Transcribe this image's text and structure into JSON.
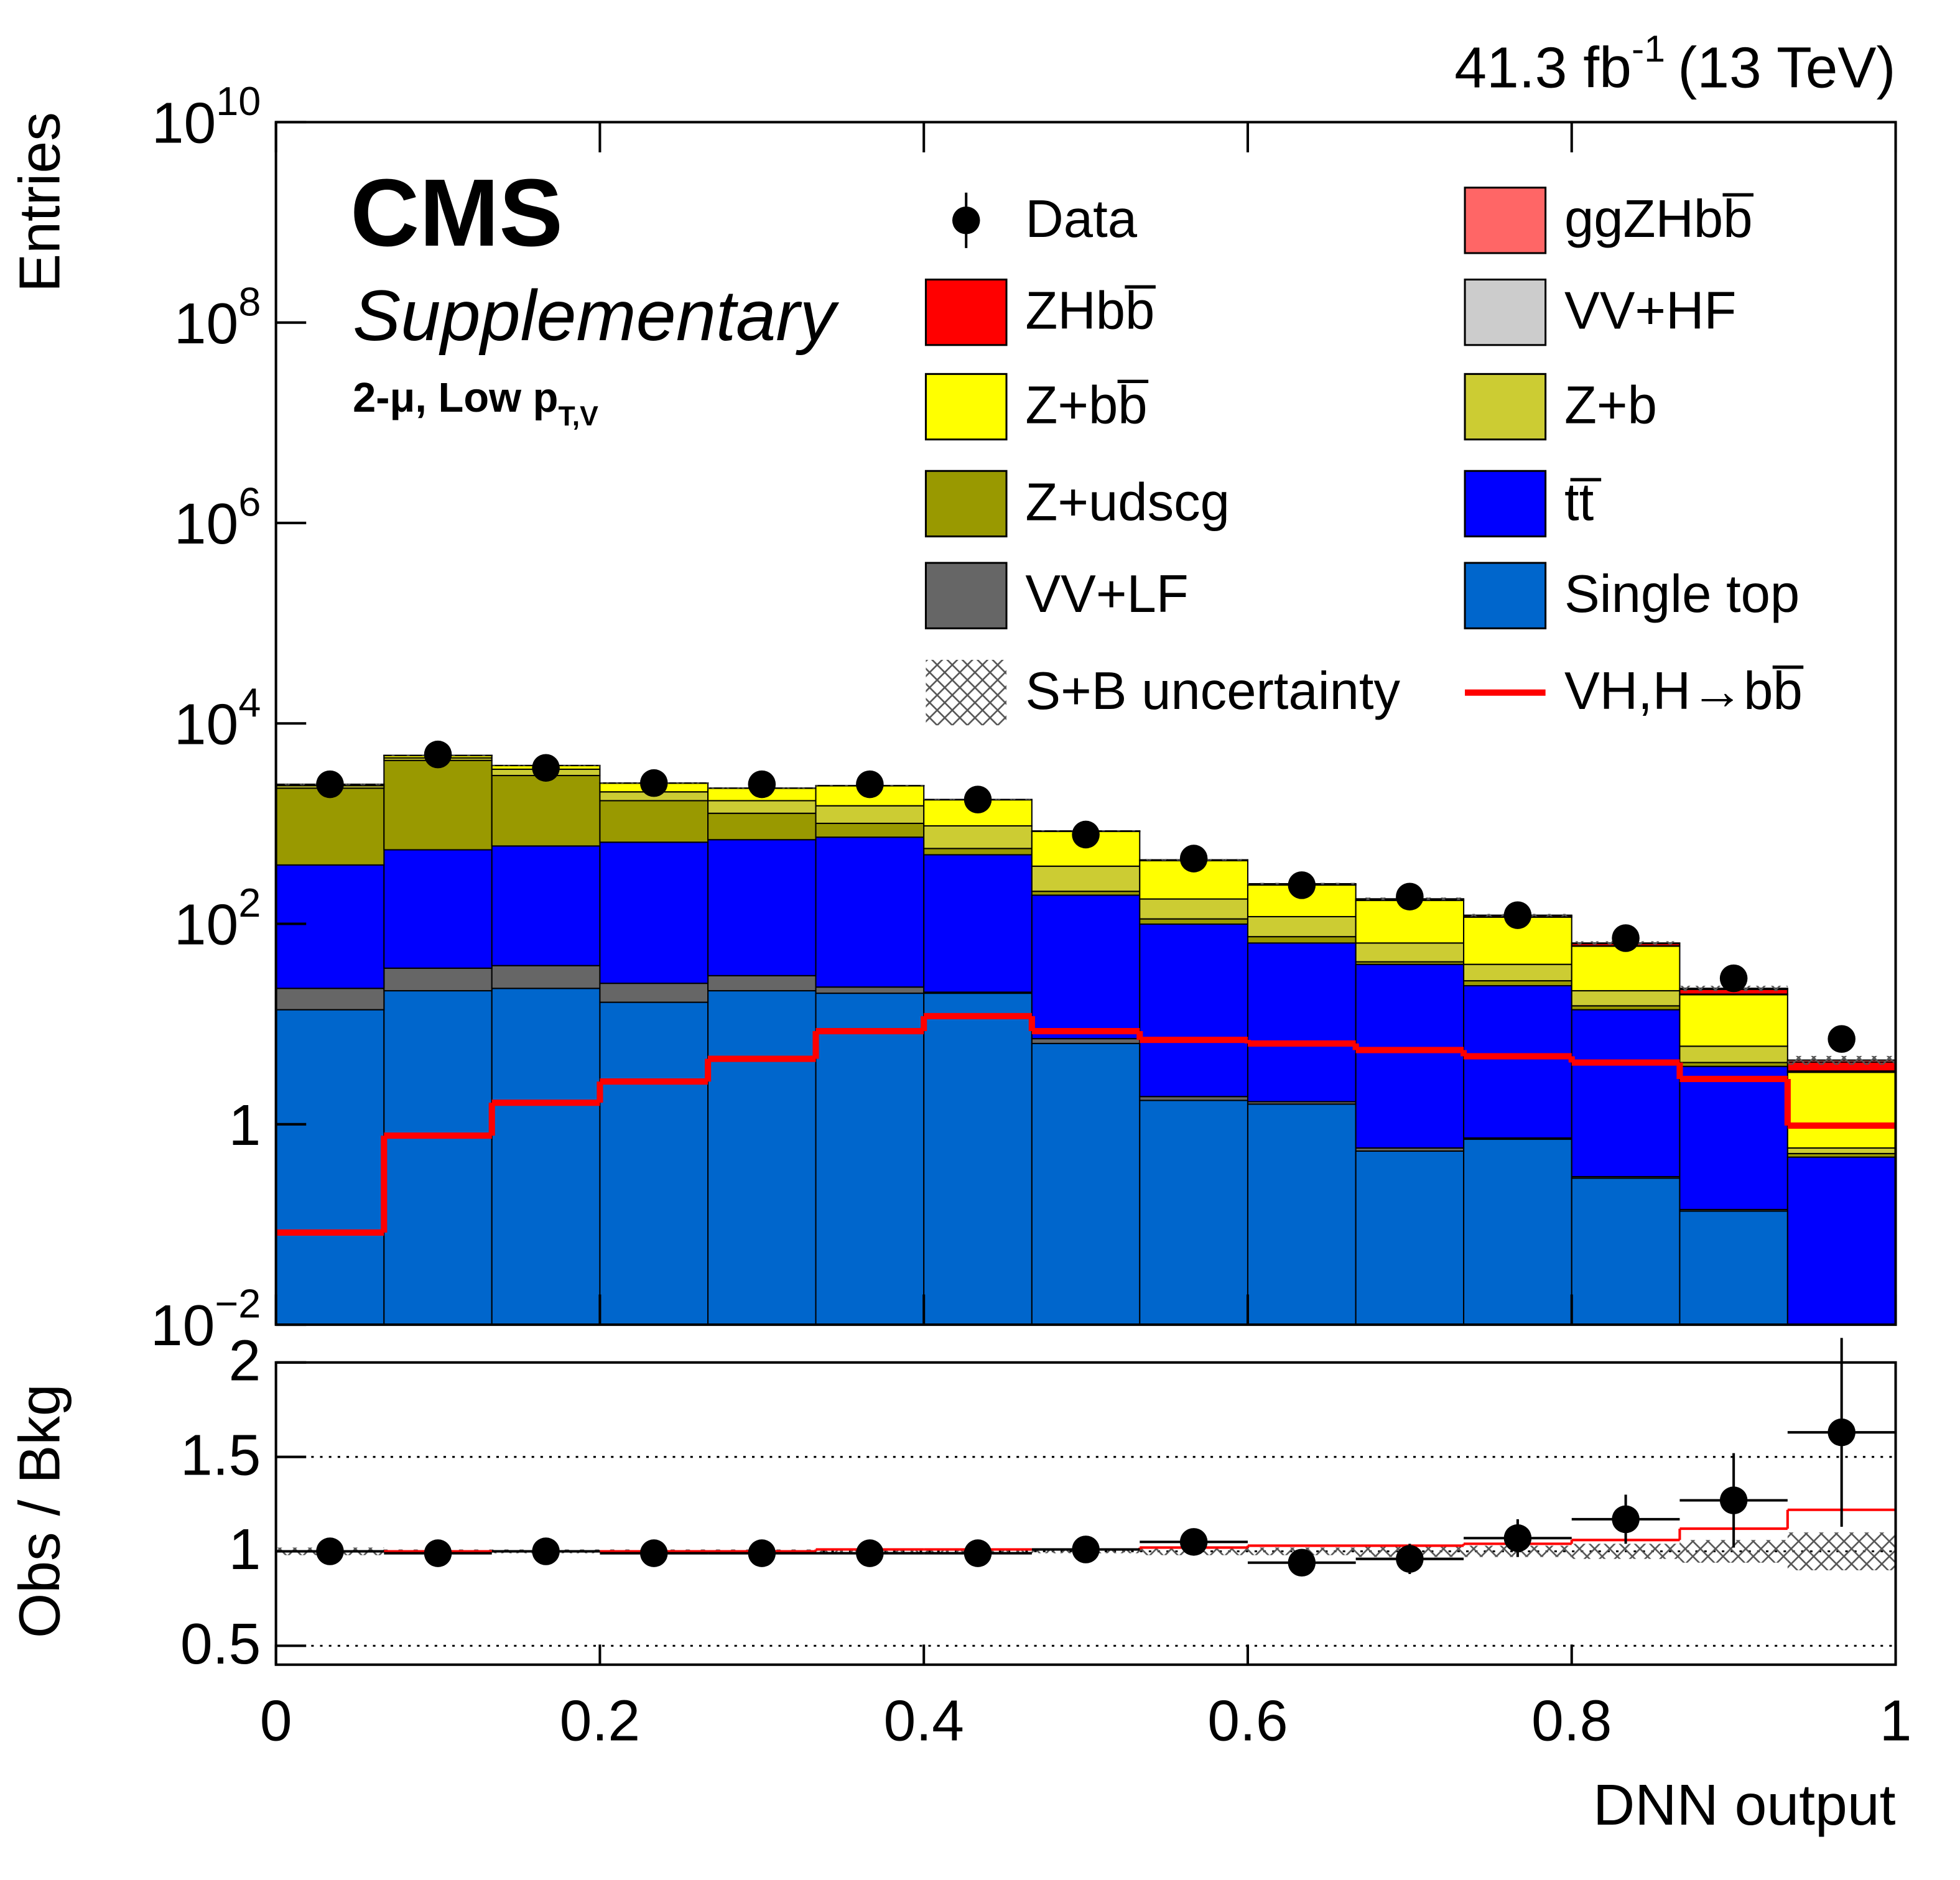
{
  "chart_data": [
    {
      "type": "histogram",
      "luminosity": {
        "text": "41.3 fb",
        "exponent": "-1",
        "energy": "(13 TeV)"
      },
      "experiment": "CMS",
      "status": "Supplementary",
      "region": {
        "text": "2-μ, Low p",
        "subscript": "T,V"
      },
      "y_label": "Entries",
      "bins": [
        0,
        0.0667,
        0.1333,
        0.2,
        0.2667,
        0.3333,
        0.4,
        0.4667,
        0.5333,
        0.6,
        0.6667,
        0.7333,
        0.8,
        0.8667,
        0.9333,
        1
      ],
      "ylim": [
        0.01,
        10000000000
      ],
      "log_y": true,
      "yticks": [
        {
          "value": 10000000000,
          "label": "10",
          "exponent": "10"
        },
        {
          "value": 100000000,
          "label": "10",
          "exponent": "8"
        },
        {
          "value": 1000000,
          "label": "10",
          "exponent": "6"
        },
        {
          "value": 10000,
          "label": "10",
          "exponent": "4"
        },
        {
          "value": 100,
          "label": "10",
          "exponent": "2"
        },
        1,
        {
          "value": 0.01,
          "label": "10",
          "exponent": "−2"
        }
      ],
      "series": [
        {
          "name": "Single top",
          "color": "#0066cc",
          "values": [
            13.9,
            21.5,
            22.7,
            16.5,
            21.5,
            20.3,
            20.3,
            6.4,
            1.73,
            1.59,
            0.54,
            0.71,
            0.29,
            0.136,
            0
          ]
        },
        {
          "name": "VV+LF",
          "color": "#666666",
          "values": [
            8.8,
            14.6,
            15.6,
            9.0,
            8.9,
            3.1,
            0.5,
            0.75,
            0.16,
            0.09,
            0.04,
            0.02,
            0.01,
            0.005,
            0
          ]
        },
        {
          "name": "tt̅",
          "color": "#0000ff",
          "values": [
            364,
            512,
            560,
            627,
            661,
            709,
            468,
            186,
            97.5,
            62.7,
            38.8,
            23.4,
            13.6,
            3.64,
            0.47
          ]
        },
        {
          "name": "Z+udscg",
          "color": "#999900",
          "values": [
            1873,
            3727,
            2422,
            1042,
            577,
            274,
            76,
            18,
            12.6,
            10.1,
            2.4,
            2.9,
            1.3,
            0.35,
            0.04
          ]
        },
        {
          "name": "Z+b",
          "color": "#cccc33",
          "values": [
            135,
            255,
            470,
            381,
            426,
            501,
            385,
            165,
            65,
            43.5,
            22.6,
            12.4,
            6.3,
            1.88,
            0.07
          ]
        },
        {
          "name": "Z+bb̅",
          "color": "#ffff00",
          "values": [
            67.9,
            261,
            305,
            458,
            558,
            876,
            778,
            459,
            250,
            126,
            107,
            77.2,
            38.3,
            13.6,
            2.72
          ]
        },
        {
          "name": "VV+HF",
          "color": "#cccccc",
          "values": [
            3,
            5,
            5,
            4,
            4,
            4,
            3,
            2,
            1.5,
            1,
            0.8,
            0.6,
            0.5,
            0.3,
            0.1
          ]
        },
        {
          "name": "ZHbb̅",
          "color": "#ff0000",
          "values": [
            0.066,
            0.62,
            1.31,
            2.14,
            3.6,
            6.8,
            9.6,
            6.8,
            5.56,
            5.12,
            4.4,
            3.82,
            3.3,
            2.26,
            0.78
          ]
        },
        {
          "name": "ggZHbb̅",
          "color": "#ff6666",
          "values": [
            0.017,
            0.15,
            0.33,
            0.53,
            0.9,
            1.7,
            2.4,
            1.7,
            1.39,
            1.28,
            1.1,
            0.95,
            0.83,
            0.57,
            0.19
          ]
        }
      ],
      "data": {
        "name": "Data",
        "color": "#000000",
        "values": [
          2470,
          4900,
          3600,
          2540,
          2470,
          2470,
          1740,
          778,
          448,
          243,
          187,
          122,
          72,
          28.6,
          7.1
        ]
      },
      "signal": {
        "name": "VH,H→bb̅",
        "color": "#ff0000",
        "values": [
          0.083,
          0.77,
          1.64,
          2.67,
          4.5,
          8.5,
          12.0,
          8.5,
          6.95,
          6.4,
          5.5,
          4.77,
          4.13,
          2.83,
          0.97
        ]
      },
      "legend": "top-right"
    },
    {
      "type": "ratio",
      "y_label": "Obs / Bkg",
      "x_label": "DNN output",
      "xlim": [
        0,
        1
      ],
      "xticks": [
        0,
        0.2,
        0.4,
        0.6,
        0.8,
        1
      ],
      "ylim": [
        0.4,
        2
      ],
      "yticks": [
        0.5,
        1,
        1.5,
        2
      ],
      "grid": true,
      "values": [
        1.0,
        0.99,
        1.0,
        0.99,
        0.99,
        0.99,
        0.99,
        1.01,
        1.05,
        0.94,
        0.96,
        1.07,
        1.17,
        1.27,
        1.63
      ],
      "errors": [
        0.02,
        0.02,
        0.02,
        0.02,
        0.02,
        0.02,
        0.03,
        0.04,
        0.05,
        0.07,
        0.08,
        0.1,
        0.13,
        0.25,
        0.5
      ],
      "signal_values": [
        1,
        1,
        1,
        1,
        1,
        1.01,
        1.01,
        1.01,
        1.02,
        1.03,
        1.03,
        1.04,
        1.06,
        1.12,
        1.22
      ],
      "band": {
        "name": "S+B uncertainty",
        "values": [
          0.02,
          0.01,
          0.01,
          0.01,
          0.01,
          0.01,
          0.01,
          0.01,
          0.02,
          0.02,
          0.03,
          0.03,
          0.04,
          0.06,
          0.1
        ]
      }
    }
  ]
}
